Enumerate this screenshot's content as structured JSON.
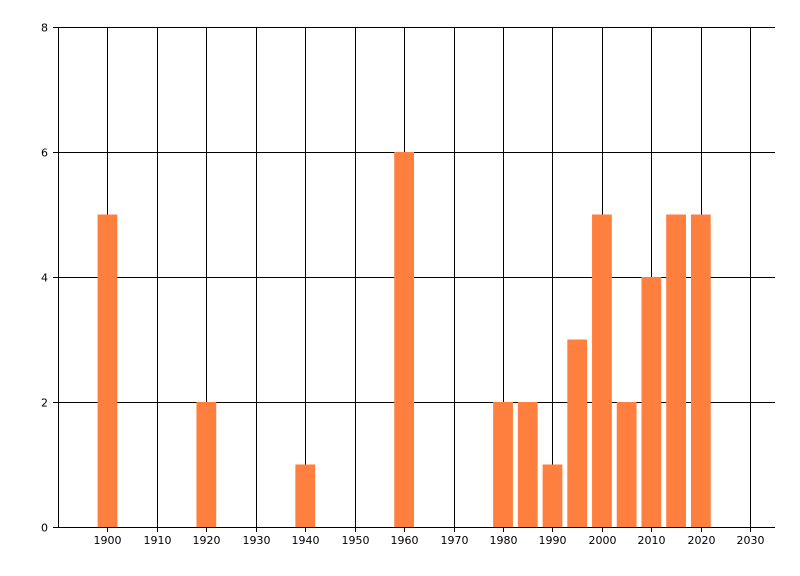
{
  "chart_data": {
    "type": "bar",
    "title": "",
    "xlabel": "",
    "ylabel": "",
    "bar_color": "#FF7F3F",
    "grid_color": "#000000",
    "background": "#FFFFFF",
    "grid": true,
    "xlim": [
      1890,
      2035
    ],
    "ylim": [
      0,
      8
    ],
    "x_ticks": [
      1900,
      1910,
      1920,
      1930,
      1940,
      1950,
      1960,
      1970,
      1980,
      1990,
      2000,
      2010,
      2020,
      2030
    ],
    "x_tick_labels": [
      "1900",
      "1910",
      "1920",
      "1930",
      "1940",
      "1950",
      "1960",
      "1970",
      "1980",
      "1990",
      "2000",
      "2010",
      "2020",
      "2030"
    ],
    "y_ticks": [
      0,
      2,
      4,
      6,
      8
    ],
    "y_tick_labels": [
      "0",
      "2",
      "4",
      "6",
      "8"
    ],
    "bar_width": 4,
    "x": [
      1900,
      1920,
      1940,
      1960,
      1980,
      1985,
      1990,
      1995,
      2000,
      2005,
      2010,
      2015,
      2020
    ],
    "values": [
      5,
      2,
      1,
      6,
      2,
      2,
      1,
      3,
      5,
      2,
      4,
      5,
      5
    ]
  }
}
